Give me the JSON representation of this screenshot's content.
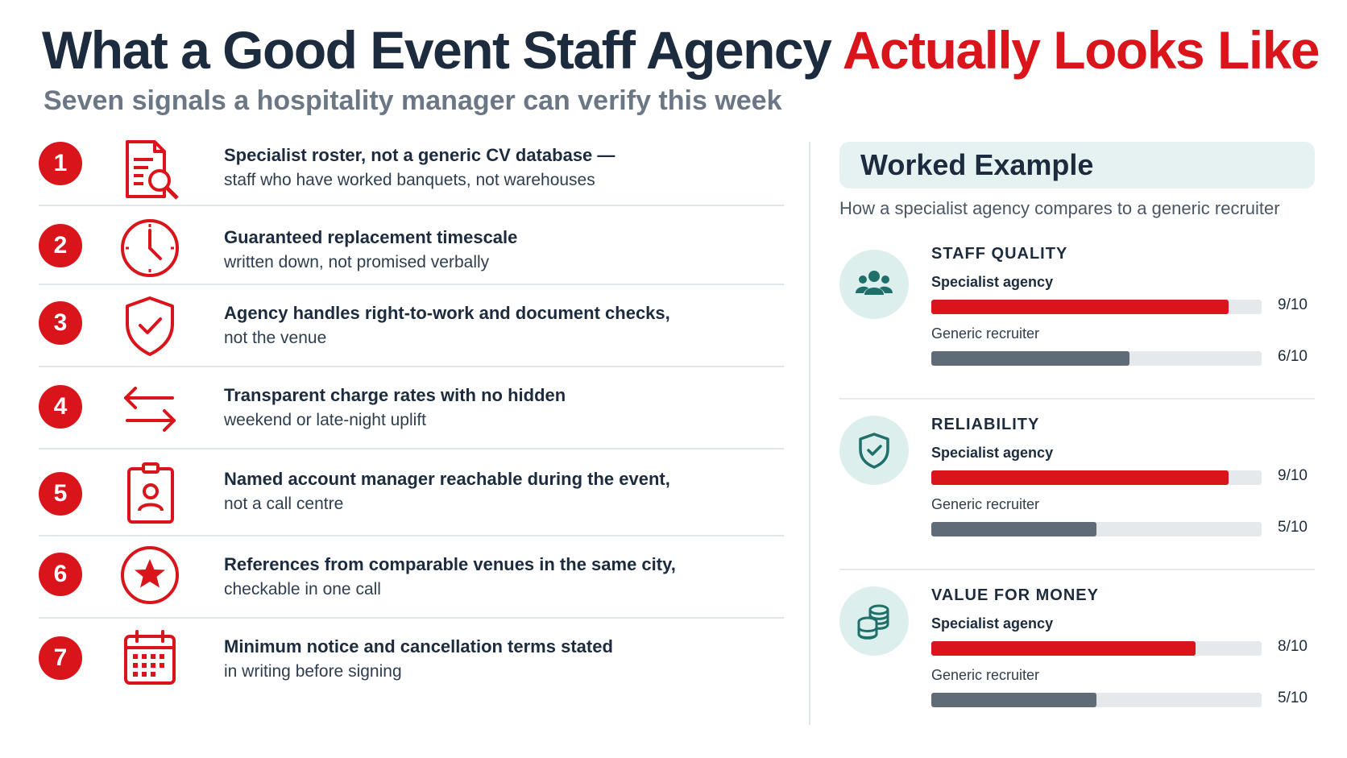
{
  "header": {
    "title_dark": "What a Good Event Staff Agency",
    "title_red": "Actually Looks Like",
    "subtitle": "Seven signals a hospitality manager can verify this week"
  },
  "signals": [
    {
      "num": "1",
      "icon": "document-search-icon",
      "bold": "Specialist roster, not a generic CV database —",
      "normal": "staff who have worked banquets, not warehouses"
    },
    {
      "num": "2",
      "icon": "clock-icon",
      "bold": "Guaranteed replacement timescale",
      "normal": "written down, not promised verbally"
    },
    {
      "num": "3",
      "icon": "shield-check-icon",
      "bold": "Agency handles right-to-work and document checks,",
      "normal": "not the venue"
    },
    {
      "num": "4",
      "icon": "swap-arrows-icon",
      "bold": "Transparent charge rates with no hidden",
      "normal": "weekend or late-night uplift"
    },
    {
      "num": "5",
      "icon": "id-badge-icon",
      "bold": "Named account manager reachable during the event,",
      "normal": "not a call centre"
    },
    {
      "num": "6",
      "icon": "star-circle-icon",
      "bold": "References from comparable venues in the same city,",
      "normal": "checkable in one call"
    },
    {
      "num": "7",
      "icon": "calendar-icon",
      "bold": "Minimum notice and cancellation terms stated",
      "normal": "in writing before signing"
    }
  ],
  "worked_example": {
    "heading": "Worked Example",
    "subheading": "How a specialist agency compares to a generic recruiter",
    "metrics": [
      {
        "title": "STAFF QUALITY",
        "icon": "people-icon",
        "rows": [
          {
            "label": "Specialist agency",
            "value": 9,
            "score": "9/10"
          },
          {
            "label": "Generic recruiter",
            "value": 6,
            "score": "6/10"
          }
        ]
      },
      {
        "title": "RELIABILITY",
        "icon": "shield-check-icon",
        "rows": [
          {
            "label": "Specialist agency",
            "value": 9,
            "score": "9/10"
          },
          {
            "label": "Generic recruiter",
            "value": 5,
            "score": "5/10"
          }
        ]
      },
      {
        "title": "VALUE FOR MONEY",
        "icon": "coins-icon",
        "rows": [
          {
            "label": "Specialist agency",
            "value": 8,
            "score": "8/10"
          },
          {
            "label": "Generic recruiter",
            "value": 5,
            "score": "5/10"
          }
        ]
      }
    ]
  },
  "colors": {
    "accent": "#d9141b",
    "dark": "#1c2b3d",
    "teal": "#1f6f6a",
    "bar_grey": "#5f6b76"
  }
}
